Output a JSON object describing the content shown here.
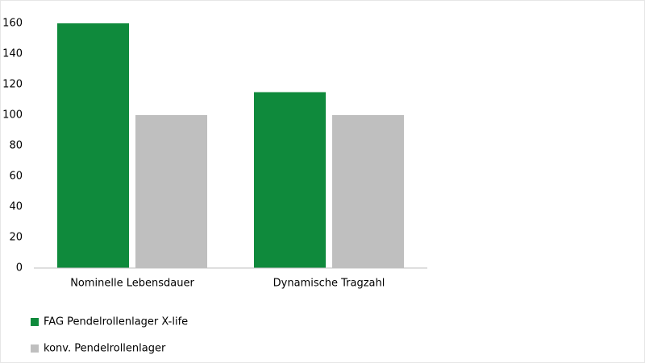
{
  "chart_data": {
    "type": "bar",
    "categories": [
      "Nominelle Lebensdauer",
      "Dynamische Tragzahl"
    ],
    "series": [
      {
        "name": "FAG Pendelrollenlager X-life",
        "color": "#0f8a3c",
        "values": [
          160,
          115
        ]
      },
      {
        "name": "konv. Pendelrollenlager",
        "color": "#bfbfbf",
        "values": [
          100,
          100
        ]
      }
    ],
    "ylim": [
      0,
      160
    ],
    "yticks": [
      0,
      20,
      40,
      60,
      80,
      100,
      120,
      140,
      160
    ],
    "grid": false,
    "legend": "bottom-left"
  }
}
